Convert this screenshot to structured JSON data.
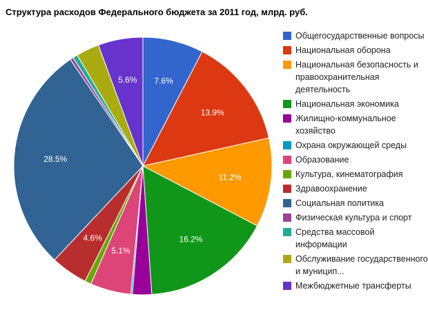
{
  "chart_data": {
    "type": "pie",
    "title": "Структура расходов Федерального бюджета за 2011 год, млрд. руб.",
    "legend_position": "right",
    "slices": [
      {
        "label": "Общегосударственные вопросы",
        "value": 7.6,
        "data_label": "7.6%",
        "color": "#3366cc"
      },
      {
        "label": "Национальная оборона",
        "value": 13.9,
        "data_label": "13.9%",
        "color": "#dc3912"
      },
      {
        "label": "Национальная безопасность и правоохранительная деятельность",
        "value": 11.2,
        "data_label": "11.2%",
        "color": "#ff9900"
      },
      {
        "label": "Национальная экономика",
        "value": 16.2,
        "data_label": "16.2%",
        "color": "#109618"
      },
      {
        "label": "Жилищно-коммунальное хозяйство",
        "value": 2.4,
        "data_label": "",
        "color": "#990099"
      },
      {
        "label": "Охрана окружающей среды",
        "value": 0.2,
        "data_label": "",
        "color": "#0099c6"
      },
      {
        "label": "Образование",
        "value": 5.1,
        "data_label": "5.1%",
        "color": "#dd4477"
      },
      {
        "label": "Культура, кинематография",
        "value": 0.8,
        "data_label": "",
        "color": "#66aa00"
      },
      {
        "label": "Здравоохранение",
        "value": 4.6,
        "data_label": "4.6%",
        "color": "#b82e2e"
      },
      {
        "label": "Социальная политика",
        "value": 28.5,
        "data_label": "28.5%",
        "color": "#316395"
      },
      {
        "label": "Физическая культура и спорт",
        "value": 0.4,
        "data_label": "",
        "color": "#994499"
      },
      {
        "label": "Средства массовой информации",
        "value": 0.6,
        "data_label": "",
        "color": "#22aa99"
      },
      {
        "label": "Обслуживание государственного и муницип...",
        "value": 2.9,
        "data_label": "",
        "color": "#aaaa11"
      },
      {
        "label": "Межбюджетные трансферты",
        "value": 5.6,
        "data_label": "5.6%",
        "color": "#6633cc"
      }
    ]
  }
}
